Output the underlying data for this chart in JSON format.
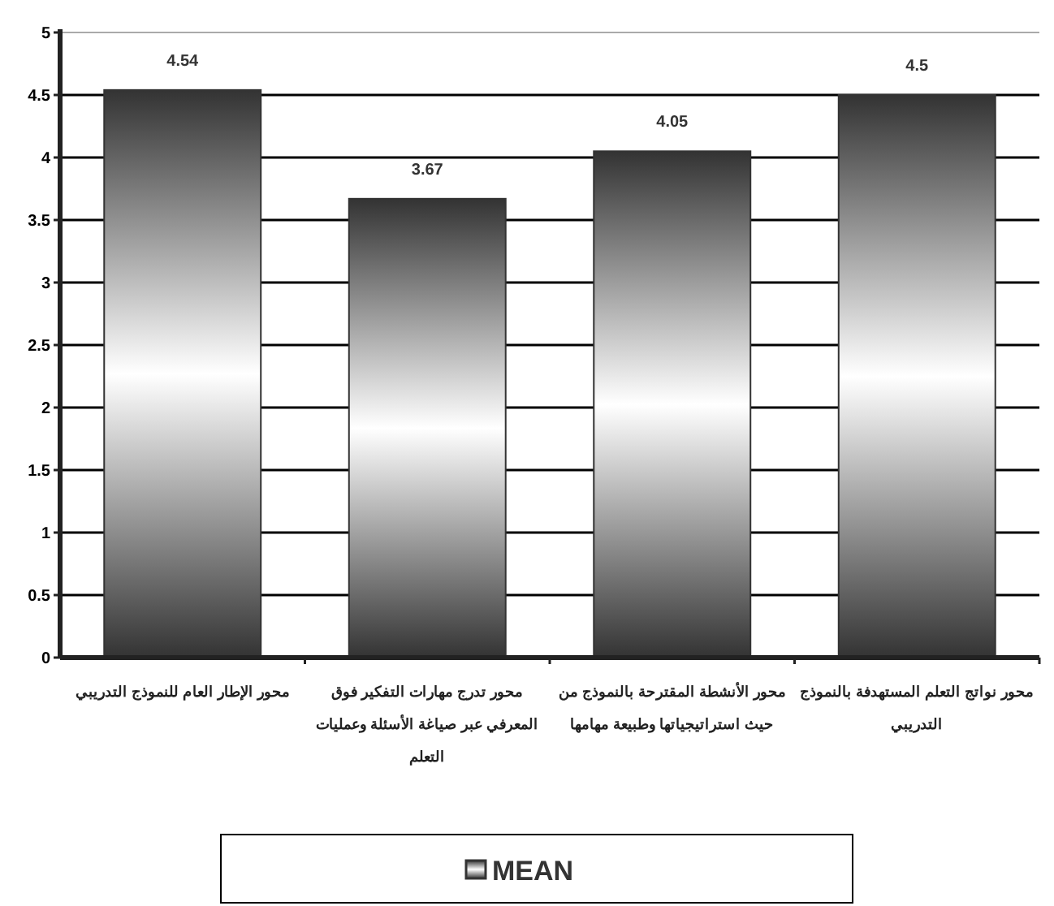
{
  "chart_data": {
    "type": "bar",
    "categories": [
      "محور الإطار العام للنموذج التدريبي",
      "محور تدرج مهارات التفكير فوق المعرفي عبر صياغة الأسئلة وعمليات التعلم",
      "محور الأنشطة المقترحة بالنموذج من حيث استراتيجياتها وطبيعة مهامها",
      "محور نواتج التعلم المستهدفة بالنموذج التدريبي"
    ],
    "series": [
      {
        "name": "MEAN",
        "color": "#333333",
        "values": [
          4.54,
          3.67,
          4.05,
          4.5
        ]
      }
    ],
    "ylim": [
      0,
      5
    ],
    "yticks": [
      0,
      0.5,
      1,
      1.5,
      2,
      2.5,
      3,
      3.5,
      4,
      4.5,
      5
    ],
    "grid": "y",
    "data_labels": true,
    "legend": "bottom"
  }
}
